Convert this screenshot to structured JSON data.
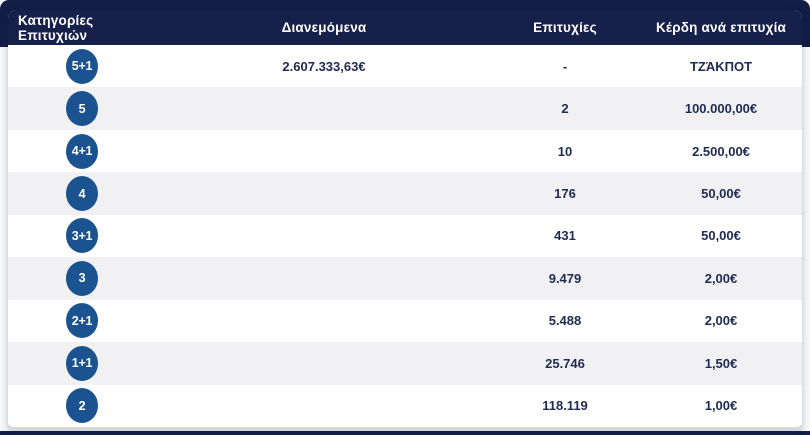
{
  "colors": {
    "outer_band": "#131c44",
    "header_background": "#16204b",
    "badge_blue": "#1a538f",
    "row_alt_gray": "#f1f1f4",
    "cell_text_navy": "#1e2b52",
    "bottom_border_gray": "#d5d7dd"
  },
  "table": {
    "columns": [
      {
        "label": "Κατηγορίες Επιτυχιών"
      },
      {
        "label": "Διανεμόμενα"
      },
      {
        "label": "Επιτυχίες"
      },
      {
        "label": "Κέρδη ανά επιτυχία"
      }
    ],
    "rows": [
      {
        "category": "5+1",
        "distributed": "2.607.333,63€",
        "winners": "-",
        "prize": "ΤΖΆΚΠΟΤ"
      },
      {
        "category": "5",
        "distributed": "",
        "winners": "2",
        "prize": "100.000,00€"
      },
      {
        "category": "4+1",
        "distributed": "",
        "winners": "10",
        "prize": "2.500,00€"
      },
      {
        "category": "4",
        "distributed": "",
        "winners": "176",
        "prize": "50,00€"
      },
      {
        "category": "3+1",
        "distributed": "",
        "winners": "431",
        "prize": "50,00€"
      },
      {
        "category": "3",
        "distributed": "",
        "winners": "9.479",
        "prize": "2,00€"
      },
      {
        "category": "2+1",
        "distributed": "",
        "winners": "5.488",
        "prize": "2,00€"
      },
      {
        "category": "1+1",
        "distributed": "",
        "winners": "25.746",
        "prize": "1,50€"
      },
      {
        "category": "2",
        "distributed": "",
        "winners": "118.119",
        "prize": "1,00€"
      }
    ]
  }
}
